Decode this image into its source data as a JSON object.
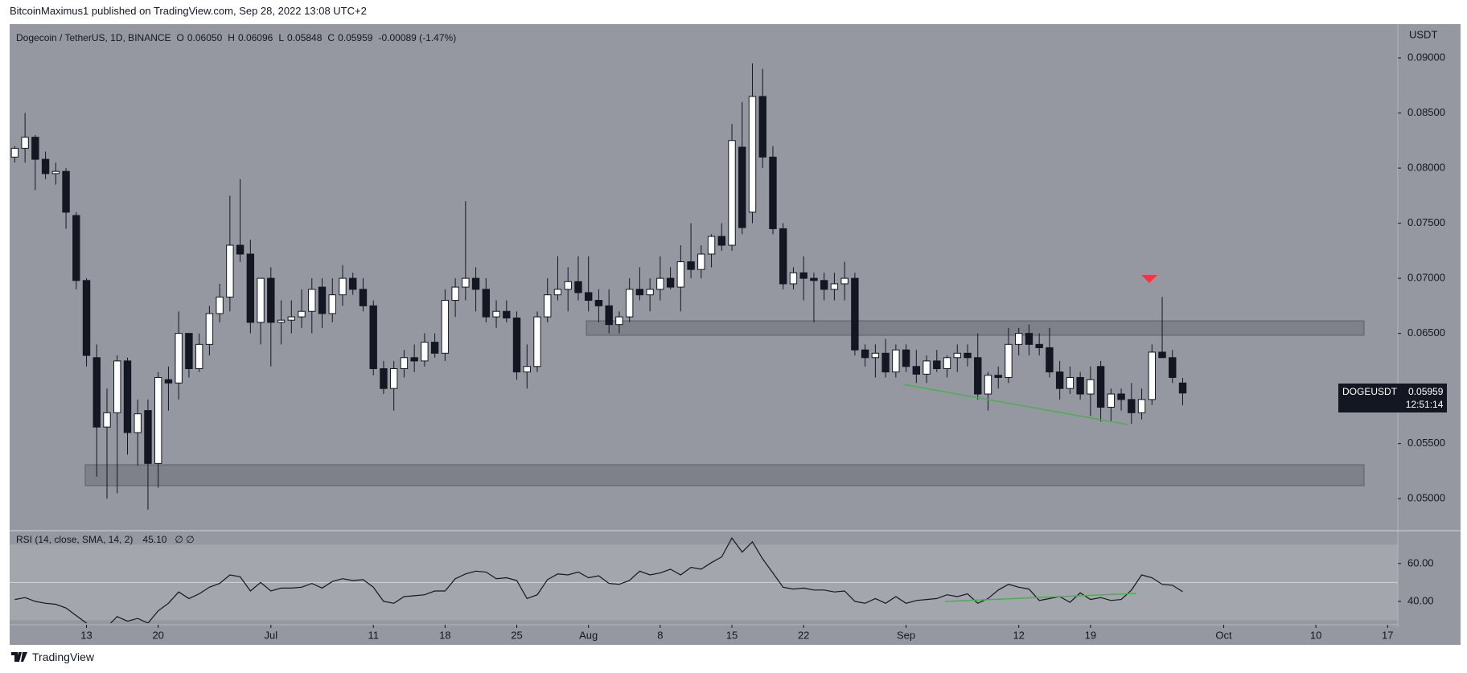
{
  "header": {
    "publisher": "BitcoinMaximus1 published on TradingView.com, Sep 28, 2022 13:08 UTC+2",
    "footer": "TradingView"
  },
  "chart_data": [
    {
      "type": "candlestick",
      "title": "Dogecoin / TetherUS, 1D, BINANCE",
      "legend": [
        {
          "key": "O",
          "value": "0.06050"
        },
        {
          "key": "H",
          "value": "0.06096"
        },
        {
          "key": "L",
          "value": "0.05848"
        },
        {
          "key": "C",
          "value": "0.05959"
        }
      ],
      "change": "-0.00089 (-1.47%)",
      "axis_label": "USDT",
      "price_tag": {
        "symbol": "DOGEUSDT",
        "price": "0.05959",
        "countdown": "12:51:14"
      },
      "up_color": "#ffffff",
      "down_color": "#131722",
      "open": [
        0.081,
        0.0818,
        0.0828,
        0.0808,
        0.0795,
        0.0797,
        0.0757,
        0.0698,
        0.0628,
        0.0565,
        0.0578,
        0.0625,
        0.056,
        0.058,
        0.0532,
        0.0608,
        0.0605,
        0.065,
        0.0618,
        0.064,
        0.0668,
        0.0683,
        0.073,
        0.0722,
        0.066,
        0.07,
        0.066,
        0.0662,
        0.0665,
        0.067,
        0.0692,
        0.0668,
        0.0685,
        0.07,
        0.069,
        0.0675,
        0.0618,
        0.06,
        0.0618,
        0.0628,
        0.0625,
        0.0642,
        0.0632,
        0.068,
        0.0692,
        0.07,
        0.069,
        0.0665,
        0.067,
        0.0664,
        0.0615,
        0.062,
        0.0665,
        0.0685,
        0.069,
        0.0697,
        0.0687,
        0.068,
        0.0675,
        0.0658,
        0.0665,
        0.069,
        0.0685,
        0.069,
        0.07,
        0.0692,
        0.0715,
        0.0708,
        0.0722,
        0.0738,
        0.073,
        0.0819,
        0.076,
        0.0865,
        0.081,
        0.0745,
        0.0695,
        0.0705,
        0.07,
        0.0698,
        0.069,
        0.0695,
        0.07,
        0.0635,
        0.0628,
        0.0632,
        0.0615,
        0.0635,
        0.062,
        0.0613,
        0.0625,
        0.0618,
        0.0628,
        0.0632,
        0.0628,
        0.0595,
        0.0612,
        0.061,
        0.064,
        0.065,
        0.064,
        0.0637,
        0.0615,
        0.06,
        0.061,
        0.0595,
        0.062,
        0.0583,
        0.0595,
        0.059,
        0.0578,
        0.059,
        0.0633,
        0.0628,
        0.0605
      ],
      "high": [
        0.082,
        0.085,
        0.083,
        0.0815,
        0.0805,
        0.08,
        0.076,
        0.07,
        0.064,
        0.06,
        0.063,
        0.0628,
        0.059,
        0.059,
        0.0615,
        0.062,
        0.067,
        0.065,
        0.065,
        0.0675,
        0.0695,
        0.0775,
        0.079,
        0.0735,
        0.07,
        0.071,
        0.068,
        0.068,
        0.069,
        0.07,
        0.07,
        0.07,
        0.0712,
        0.0705,
        0.07,
        0.068,
        0.0625,
        0.0625,
        0.0635,
        0.064,
        0.065,
        0.065,
        0.069,
        0.07,
        0.077,
        0.071,
        0.07,
        0.068,
        0.068,
        0.067,
        0.064,
        0.067,
        0.07,
        0.072,
        0.071,
        0.072,
        0.072,
        0.069,
        0.069,
        0.067,
        0.07,
        0.071,
        0.07,
        0.072,
        0.071,
        0.073,
        0.075,
        0.073,
        0.074,
        0.075,
        0.084,
        0.086,
        0.0895,
        0.089,
        0.082,
        0.075,
        0.071,
        0.072,
        0.0705,
        0.0705,
        0.0705,
        0.0715,
        0.0705,
        0.064,
        0.064,
        0.0645,
        0.064,
        0.064,
        0.0635,
        0.063,
        0.0635,
        0.063,
        0.064,
        0.064,
        0.065,
        0.0615,
        0.062,
        0.0655,
        0.0655,
        0.0658,
        0.065,
        0.0655,
        0.0625,
        0.062,
        0.0615,
        0.062,
        0.0625,
        0.06,
        0.06,
        0.0605,
        0.06,
        0.064,
        0.0683,
        0.0635,
        0.06096
      ],
      "low": [
        0.0805,
        0.0805,
        0.078,
        0.079,
        0.0785,
        0.0745,
        0.069,
        0.062,
        0.052,
        0.05,
        0.0505,
        0.054,
        0.053,
        0.049,
        0.051,
        0.058,
        0.059,
        0.061,
        0.0615,
        0.063,
        0.066,
        0.067,
        0.0715,
        0.065,
        0.064,
        0.062,
        0.064,
        0.065,
        0.0655,
        0.065,
        0.0655,
        0.066,
        0.0675,
        0.0685,
        0.067,
        0.0612,
        0.0595,
        0.058,
        0.061,
        0.0615,
        0.062,
        0.0628,
        0.0625,
        0.0665,
        0.068,
        0.067,
        0.066,
        0.0655,
        0.066,
        0.0608,
        0.06,
        0.0615,
        0.066,
        0.068,
        0.067,
        0.068,
        0.067,
        0.066,
        0.065,
        0.065,
        0.066,
        0.068,
        0.067,
        0.068,
        0.069,
        0.067,
        0.07,
        0.07,
        0.071,
        0.0725,
        0.0725,
        0.074,
        0.075,
        0.08,
        0.074,
        0.069,
        0.069,
        0.068,
        0.066,
        0.068,
        0.068,
        0.068,
        0.063,
        0.062,
        0.061,
        0.061,
        0.061,
        0.0615,
        0.0605,
        0.0605,
        0.0615,
        0.061,
        0.0615,
        0.062,
        0.059,
        0.058,
        0.06,
        0.0605,
        0.063,
        0.063,
        0.063,
        0.061,
        0.059,
        0.0595,
        0.059,
        0.0575,
        0.057,
        0.057,
        0.058,
        0.0568,
        0.0572,
        0.0585,
        0.063,
        0.0605,
        0.05848
      ],
      "close": [
        0.0818,
        0.0828,
        0.0808,
        0.0795,
        0.0797,
        0.076,
        0.0698,
        0.063,
        0.0565,
        0.0578,
        0.0625,
        0.056,
        0.0577,
        0.0532,
        0.061,
        0.0605,
        0.065,
        0.0618,
        0.064,
        0.0668,
        0.0683,
        0.073,
        0.0722,
        0.066,
        0.07,
        0.066,
        0.0662,
        0.0665,
        0.067,
        0.069,
        0.0668,
        0.0685,
        0.07,
        0.069,
        0.0675,
        0.0618,
        0.06,
        0.0618,
        0.0628,
        0.0625,
        0.0642,
        0.0632,
        0.068,
        0.0692,
        0.07,
        0.069,
        0.0665,
        0.067,
        0.0664,
        0.0615,
        0.062,
        0.0665,
        0.0685,
        0.069,
        0.0697,
        0.0687,
        0.068,
        0.0675,
        0.0658,
        0.0665,
        0.069,
        0.0685,
        0.069,
        0.07,
        0.0692,
        0.0715,
        0.0708,
        0.0722,
        0.0738,
        0.073,
        0.0825,
        0.0746,
        0.0865,
        0.081,
        0.0745,
        0.0695,
        0.0705,
        0.07,
        0.0698,
        0.069,
        0.0695,
        0.07,
        0.0635,
        0.0628,
        0.0632,
        0.0615,
        0.0635,
        0.062,
        0.0613,
        0.0625,
        0.0618,
        0.0628,
        0.0632,
        0.0628,
        0.0595,
        0.0612,
        0.061,
        0.064,
        0.065,
        0.064,
        0.0637,
        0.0615,
        0.06,
        0.061,
        0.0595,
        0.0608,
        0.0583,
        0.0595,
        0.059,
        0.0578,
        0.059,
        0.0633,
        0.0628,
        0.061,
        0.05959
      ],
      "xlim": [
        -0.5,
        135
      ],
      "xticks": [
        {
          "value": 7,
          "label": "13"
        },
        {
          "value": 14,
          "label": "20"
        },
        {
          "value": 25,
          "label": "Jul"
        },
        {
          "value": 35,
          "label": "11"
        },
        {
          "value": 42,
          "label": "18"
        },
        {
          "value": 49,
          "label": "25"
        },
        {
          "value": 56,
          "label": "Aug"
        },
        {
          "value": 63,
          "label": "8"
        },
        {
          "value": 70,
          "label": "15"
        },
        {
          "value": 77,
          "label": "22"
        },
        {
          "value": 87,
          "label": "Sep"
        },
        {
          "value": 98,
          "label": "12"
        },
        {
          "value": 105,
          "label": "19"
        },
        {
          "value": 118,
          "label": "Oct"
        },
        {
          "value": 127,
          "label": "10"
        },
        {
          "value": 134,
          "label": "17"
        }
      ],
      "ylim": [
        0.04717,
        0.09292
      ],
      "yticks": [
        {
          "value": 0.05,
          "label": "0.05000"
        },
        {
          "value": 0.055,
          "label": "0.05500"
        },
        {
          "value": 0.06,
          "label": "0.06000"
        },
        {
          "value": 0.065,
          "label": "0.06500"
        },
        {
          "value": 0.07,
          "label": "0.07000"
        },
        {
          "value": 0.075,
          "label": "0.07500"
        },
        {
          "value": 0.08,
          "label": "0.08000"
        },
        {
          "value": 0.085,
          "label": "0.08500"
        },
        {
          "value": 0.09,
          "label": "0.09000"
        }
      ]
    },
    {
      "type": "line",
      "title": "RSI (14, close, SMA, 14, 2)",
      "value_text": "45.10",
      "extra": "∅ ∅",
      "color": "#131722",
      "values": [
        41,
        42,
        40,
        39,
        38.5,
        36.5,
        32.5,
        28.5,
        25,
        26.5,
        32,
        29.5,
        31,
        28.5,
        35,
        39,
        45,
        41.5,
        44,
        47.5,
        49.5,
        54,
        53,
        45.5,
        50,
        45.5,
        47,
        47,
        47.5,
        49.5,
        47,
        50.5,
        52,
        51,
        51.5,
        47.5,
        40,
        39,
        42.5,
        43,
        43.5,
        45.5,
        45.5,
        52,
        54.5,
        56,
        55.5,
        52,
        52.5,
        51,
        41.5,
        43.5,
        51.5,
        54.5,
        54,
        55.5,
        52.5,
        53.5,
        49.5,
        49,
        51,
        56,
        54,
        55,
        57,
        54,
        58,
        57,
        60.5,
        63.5,
        73.5,
        66,
        71.5,
        62.5,
        55,
        47.5,
        46.5,
        47,
        46,
        46,
        45,
        45.5,
        40,
        39,
        41.5,
        39,
        42.5,
        39,
        40.5,
        41,
        41.5,
        43.5,
        42.5,
        44,
        39,
        41.5,
        46,
        49,
        47.5,
        46.5,
        40.5,
        41.5,
        42.5,
        39.5,
        44.5,
        41,
        42,
        40.5,
        41,
        46,
        54,
        52.5,
        49,
        48.5,
        45.1
      ],
      "ylim": [
        28.5,
        76.5
      ],
      "yticks": [
        {
          "value": 40,
          "label": "40.00"
        },
        {
          "value": 60,
          "label": "60.00"
        }
      ],
      "band": [
        30,
        70
      ],
      "midline": 50
    }
  ]
}
